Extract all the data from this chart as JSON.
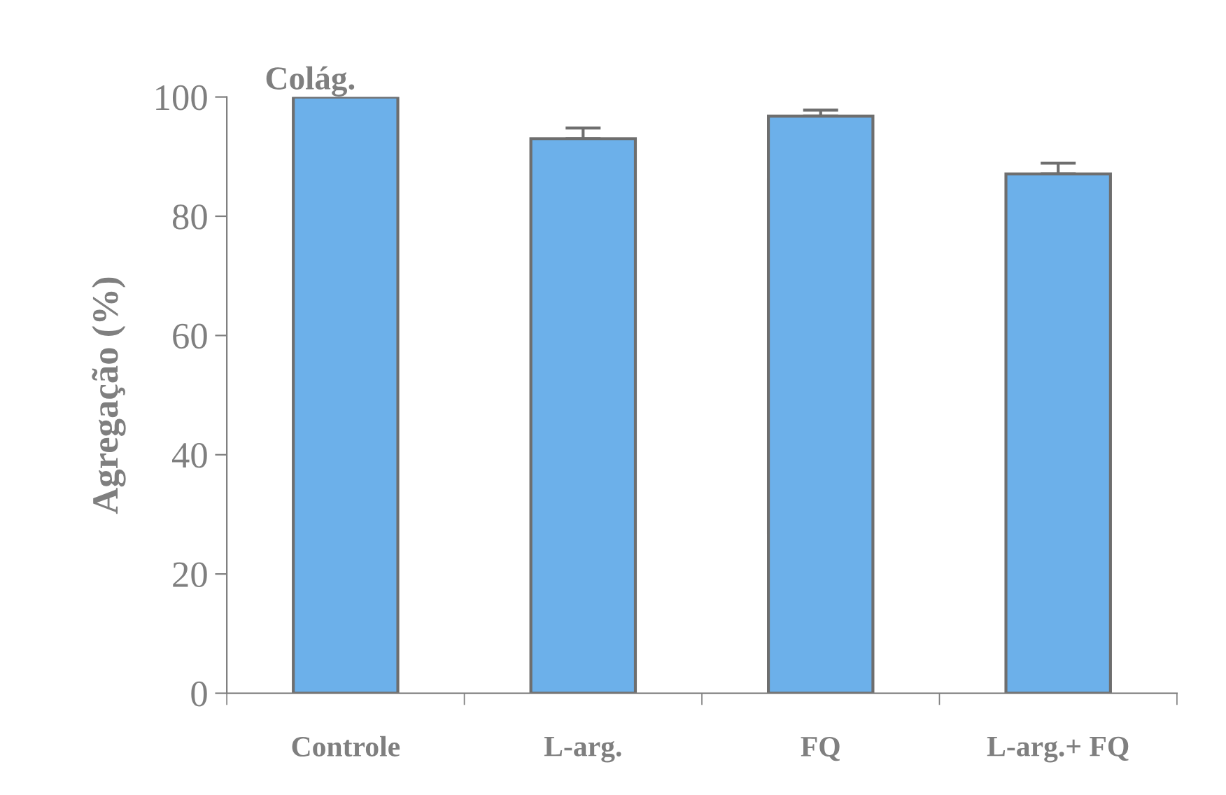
{
  "chart_data": {
    "type": "bar",
    "title": "Colág.",
    "ylabel": "Agregação (%)",
    "categories": [
      "Controle",
      "L-arg.",
      "FQ",
      "L-arg.+ FQ"
    ],
    "values": [
      100,
      93,
      96.8,
      87.1
    ],
    "errors": [
      null,
      1.8,
      1,
      1.8
    ],
    "color": "#6cb0ea",
    "ylim": [
      0,
      100
    ],
    "yticks": [
      0,
      20,
      40,
      60,
      80,
      100
    ],
    "grid": false,
    "legend": false
  }
}
